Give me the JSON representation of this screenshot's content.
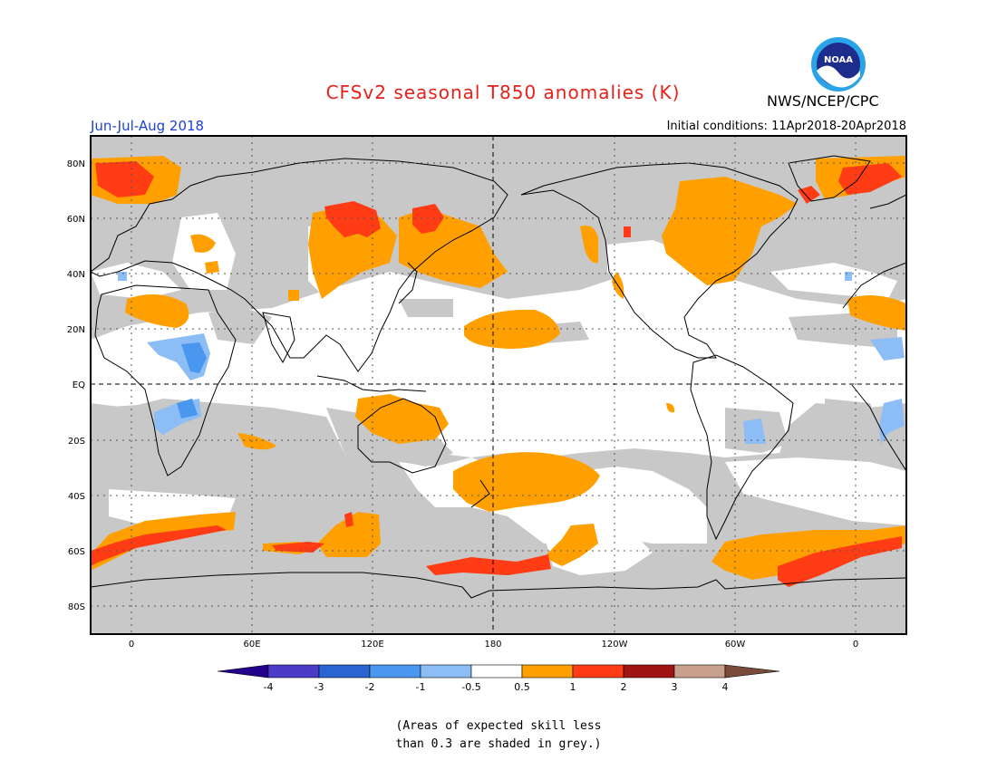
{
  "header": {
    "title": "CFSv2 seasonal T850 anomalies (K)",
    "agency": "NWS/NCEP/CPC",
    "logo_text": "NOAA",
    "season": "Jun-Jul-Aug 2018",
    "initial_conditions": "Initial conditions: 11Apr2018-20Apr2018"
  },
  "map": {
    "lat_labels": [
      "80N",
      "60N",
      "40N",
      "20N",
      "EQ",
      "20S",
      "40S",
      "60S",
      "80S"
    ],
    "lon_labels": [
      "0",
      "60E",
      "120E",
      "180",
      "120W",
      "60W",
      "0"
    ],
    "colors": {
      "skill_grey": "#c8c8c8",
      "ocean_white": "#ffffff",
      "anom_0_5_1": "#ffa000",
      "anom_1_2": "#ff3c14",
      "anom_neg_0_5_1": "#8cbdf5",
      "anom_neg_1_2": "#4a97f0",
      "coast": "#000000"
    }
  },
  "colorbar": {
    "labels": [
      "-4",
      "-3",
      "-2",
      "-1",
      "-0.5",
      "0.5",
      "1",
      "2",
      "3",
      "4"
    ],
    "colors": [
      "#22008c",
      "#4b3cc8",
      "#2864d2",
      "#4a97f0",
      "#8cbdf5",
      "#ffffff",
      "#ffa000",
      "#ff3c14",
      "#a01414",
      "#c8a08c",
      "#7a4b3a"
    ]
  },
  "note": {
    "line1": "(Areas of expected skill less",
    "line2": "than 0.3 are shaded in grey.)"
  }
}
